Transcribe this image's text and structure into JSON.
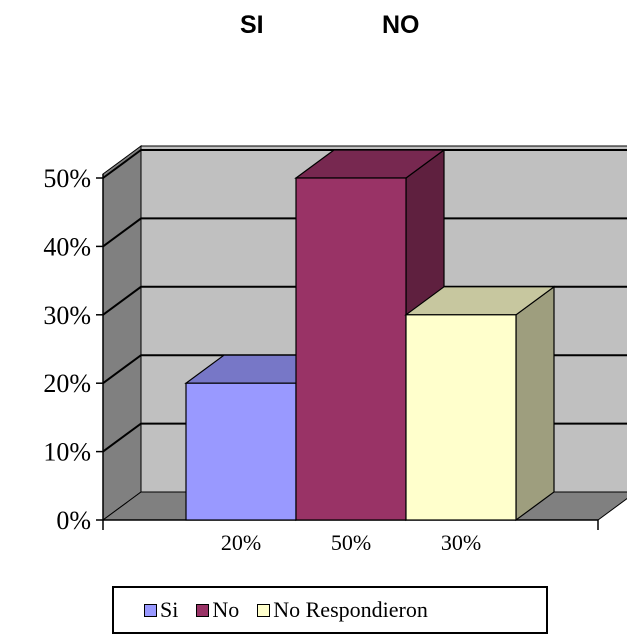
{
  "header": {
    "left_word": "SI",
    "right_word": "NO"
  },
  "chart_data": {
    "type": "bar",
    "categories": [
      "Si",
      "No",
      "No Respondieron"
    ],
    "values": [
      20,
      50,
      30
    ],
    "data_labels": [
      "20%",
      "50%",
      "30%"
    ],
    "y_ticks": [
      "0%",
      "10%",
      "20%",
      "30%",
      "40%",
      "50%"
    ],
    "ylim": [
      0,
      50
    ],
    "grid": true,
    "style": "3d-column",
    "legend_position": "bottom",
    "legend": [
      "Si",
      "No",
      "No Respondieron"
    ],
    "colors": {
      "Si": "#9999ff",
      "No": "#993366",
      "No Respondieron": "#ffffcc",
      "wall": "#c0c0c0",
      "side_wall": "#808080",
      "floor": "#808080"
    },
    "title": "",
    "xlabel": "",
    "ylabel": ""
  }
}
